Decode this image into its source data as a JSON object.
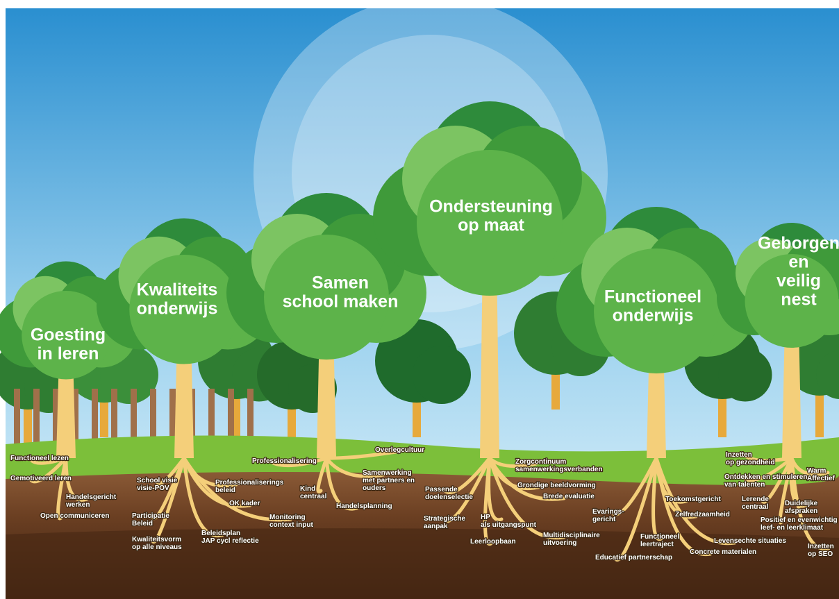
{
  "trees": [
    {
      "title": [
        "Goesting",
        "in leren"
      ],
      "roots": [
        [
          "Functioneel lezen"
        ],
        [
          "Gemotiveerd leren"
        ],
        [
          "Handelsgericht",
          "werken"
        ],
        [
          "Open communiceren"
        ]
      ]
    },
    {
      "title": [
        "Kwaliteits",
        "onderwijs"
      ],
      "roots": [
        [
          "School visie",
          "visie-POV"
        ],
        [
          "Participatie",
          "Beleid"
        ],
        [
          "Kwaliteitsvorm",
          "op alle niveaus"
        ],
        [
          "Professionaliserings",
          "beleid"
        ],
        [
          "OK kader"
        ],
        [
          "Monitoring",
          "context input"
        ],
        [
          "Beleidsplan",
          "JAP cycl reflectie"
        ]
      ]
    },
    {
      "title": [
        "Samen",
        "school maken"
      ],
      "roots": [
        [
          "Professionalisering"
        ],
        [
          "Overlegcultuur"
        ],
        [
          "Samenwerking",
          "met partners en",
          "ouders"
        ],
        [
          "Kind",
          "centraal"
        ],
        [
          "Handelsplanning"
        ]
      ]
    },
    {
      "title": [
        "Ondersteuning",
        "op maat"
      ],
      "roots": [
        [
          "Passende",
          "doelenselectie"
        ],
        [
          "Strategische",
          "aanpak"
        ],
        [
          "HP",
          "als uitgangspunt"
        ],
        [
          "Leerloopbaan"
        ],
        [
          "Zorgcontinuum",
          "samenwerkingsverbanden"
        ],
        [
          "Grondige beeldvorming"
        ],
        [
          "Brede evaluatie"
        ],
        [
          "Multidisciplinaire",
          "uitvoering"
        ]
      ]
    },
    {
      "title": [
        "Functioneel",
        "onderwijs"
      ],
      "roots": [
        [
          "Evarings-",
          "gericht"
        ],
        [
          "Toekomstgericht"
        ],
        [
          "Zelfredzaamheid"
        ],
        [
          "Functioneel",
          "leertraject"
        ],
        [
          "Levensechte situaties"
        ],
        [
          "Educatief partnerschap"
        ],
        [
          "Concrete materialen"
        ]
      ]
    },
    {
      "title": [
        "Geborgen",
        "en",
        "veilig",
        "nest"
      ],
      "roots": [
        [
          "Inzetten",
          "op gezondheid"
        ],
        [
          "Ontdekken en stimuleren",
          "van talenten"
        ],
        [
          "Lerende",
          "centraal"
        ],
        [
          "Duidelijke",
          "afspraken"
        ],
        [
          "Positief en evenwichtig",
          "leef- en leerklimaat"
        ],
        [
          "Warm",
          "Affectief"
        ],
        [
          "Inzetten",
          "op SEO"
        ]
      ]
    }
  ]
}
